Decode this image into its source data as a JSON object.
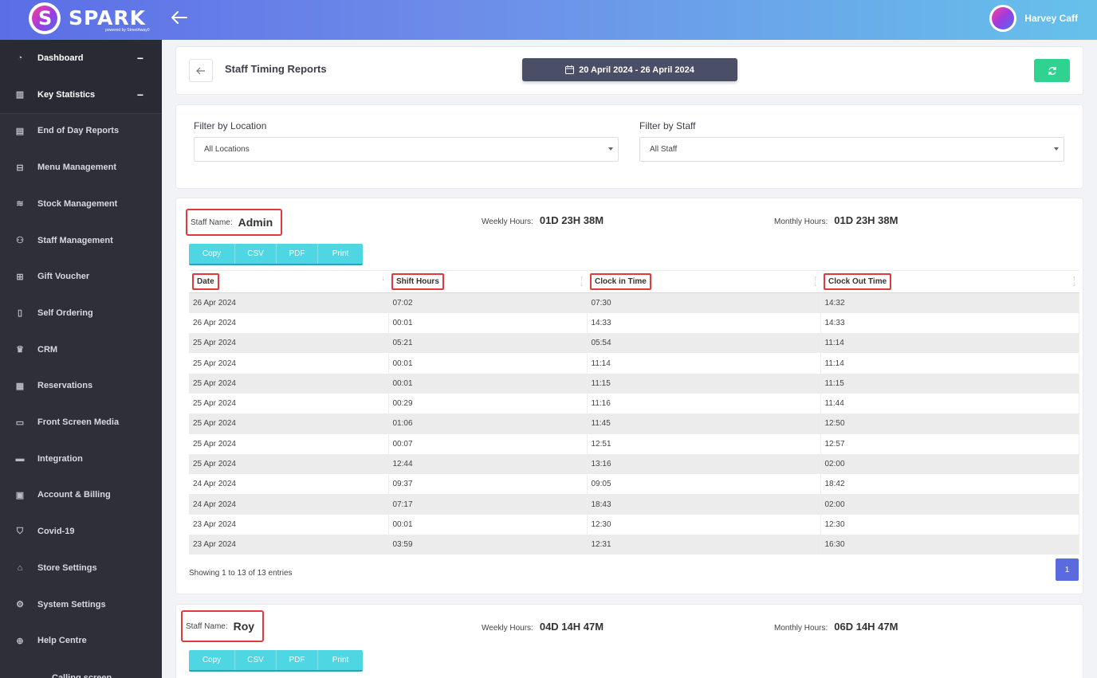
{
  "brand": {
    "name": "SPARK",
    "tagline": "powered by StreetAway0"
  },
  "user": {
    "name": "Harvey Caff"
  },
  "sidebar": {
    "items": [
      {
        "label": "Dashboard",
        "icon": "dashboard-icon",
        "glyph": "◔",
        "expanded": true
      },
      {
        "label": "Key Statistics",
        "icon": "bar-chart-icon",
        "glyph": "▥",
        "expanded": true
      },
      {
        "label": "End of Day Reports",
        "icon": "document-icon",
        "glyph": "▤"
      },
      {
        "label": "Menu Management",
        "icon": "cart-icon",
        "glyph": "⊟"
      },
      {
        "label": "Stock Management",
        "icon": "database-icon",
        "glyph": "≋"
      },
      {
        "label": "Staff Management",
        "icon": "user-icon",
        "glyph": "⚇"
      },
      {
        "label": "Gift Voucher",
        "icon": "gift-icon",
        "glyph": "⊞"
      },
      {
        "label": "Self Ordering",
        "icon": "tablet-icon",
        "glyph": "▯"
      },
      {
        "label": "CRM",
        "icon": "crown-icon",
        "glyph": "♛"
      },
      {
        "label": "Reservations",
        "icon": "calendar-icon",
        "glyph": "▦"
      },
      {
        "label": "Front Screen Media",
        "icon": "laptop-icon",
        "glyph": "▭"
      },
      {
        "label": "Integration",
        "icon": "credit-card-icon",
        "glyph": "▬"
      },
      {
        "label": "Account & Billing",
        "icon": "wallet-icon",
        "glyph": "▣"
      },
      {
        "label": "Covid-19",
        "icon": "shield-icon",
        "glyph": "⛉"
      },
      {
        "label": "Store Settings",
        "icon": "home-icon",
        "glyph": "⌂"
      },
      {
        "label": "System Settings",
        "icon": "gear-icon",
        "glyph": "⚙"
      },
      {
        "label": "Help Centre",
        "icon": "globe-icon",
        "glyph": "⊕"
      },
      {
        "label": "Calling screen",
        "icon": "",
        "glyph": ""
      }
    ],
    "collapse_symbol": "−"
  },
  "header": {
    "title": "Staff Timing Reports",
    "date_range": "20 April 2024 - 26 April 2024"
  },
  "filters": {
    "location_label": "Filter by Location",
    "location_value": "All Locations",
    "staff_label": "Filter by Staff",
    "staff_value": "All Staff"
  },
  "export_buttons": [
    "Copy",
    "CSV",
    "PDF",
    "Print"
  ],
  "staff_reports": [
    {
      "staff_label": "Staff Name:",
      "staff_name": "Admin",
      "weekly_label": "Weekly Hours:",
      "weekly_hours": "01D 23H 38M",
      "monthly_label": "Monthly Hours:",
      "monthly_hours": "01D 23H 38M",
      "columns": [
        "Date",
        "Shift Hours",
        "Clock in Time",
        "Clock Out Time"
      ],
      "rows": [
        [
          "26 Apr 2024",
          "07:02",
          "07:30",
          "14:32"
        ],
        [
          "26 Apr 2024",
          "00:01",
          "14:33",
          "14:33"
        ],
        [
          "25 Apr 2024",
          "05:21",
          "05:54",
          "11:14"
        ],
        [
          "25 Apr 2024",
          "00:01",
          "11:14",
          "11:14"
        ],
        [
          "25 Apr 2024",
          "00:01",
          "11:15",
          "11:15"
        ],
        [
          "25 Apr 2024",
          "00:29",
          "11:16",
          "11:44"
        ],
        [
          "25 Apr 2024",
          "01:06",
          "11:45",
          "12:50"
        ],
        [
          "25 Apr 2024",
          "00:07",
          "12:51",
          "12:57"
        ],
        [
          "25 Apr 2024",
          "12:44",
          "13:16",
          "02:00"
        ],
        [
          "24 Apr 2024",
          "09:37",
          "09:05",
          "18:42"
        ],
        [
          "24 Apr 2024",
          "07:17",
          "18:43",
          "02:00"
        ],
        [
          "23 Apr 2024",
          "00:01",
          "12:30",
          "12:30"
        ],
        [
          "23 Apr 2024",
          "03:59",
          "12:31",
          "16:30"
        ]
      ],
      "showing": "Showing 1 to 13 of 13 entries",
      "page": "1"
    },
    {
      "staff_label": "Staff Name:",
      "staff_name": "Roy",
      "weekly_label": "Weekly Hours:",
      "weekly_hours": "04D 14H 47M",
      "monthly_label": "Monthly Hours:",
      "monthly_hours": "06D 14H 47M"
    }
  ],
  "colors": {
    "topbar_start": "#5b6ee6",
    "topbar_end": "#66c1ea",
    "sidebar_bg": "#2f2f3a",
    "date_range_bg": "#4a4e66",
    "refresh_bg": "#2fd28e",
    "export_bg": "#4fd6e3",
    "highlight_border": "#e23a3a",
    "page_active": "#5a6be0"
  }
}
